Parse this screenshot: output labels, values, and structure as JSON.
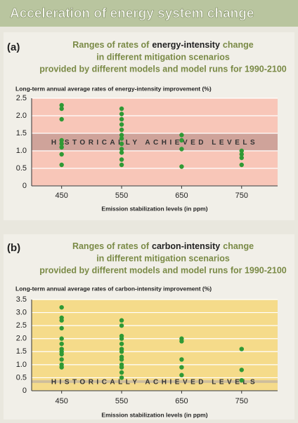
{
  "header": {
    "title": "Acceleration of energy system change"
  },
  "chart_data": [
    {
      "type": "scatter",
      "panel_label": "(a)",
      "title_parts": [
        "Ranges of rates of",
        "energy-intensity",
        "change"
      ],
      "title_lines": [
        "in different mitigation scenarios",
        "provided by different models and model runs for 1990-2100"
      ],
      "ylabel": "Long-term annual average rates of energy-intensity improvement (%)",
      "xlabel": "Emission stabilization levels (in ppm)",
      "xlim": [
        400,
        810
      ],
      "xticks": [
        450,
        550,
        650,
        750
      ],
      "ylim": [
        0,
        2.5
      ],
      "yticks": [
        0,
        0.5,
        {
          "value": 1,
          "label": "1.0"
        },
        1.5,
        {
          "value": 2,
          "label": "2.0"
        },
        2.5
      ],
      "grid": true,
      "plot_color": "#f8c6b8",
      "color": "#2f9a35",
      "band": {
        "range": [
          1,
          1.5
        ],
        "label": "HISTORICALLY ACHIEVED LEVELS",
        "color": "#cfa39a"
      },
      "x": [
        450,
        450,
        450,
        450,
        450,
        450,
        450,
        450,
        550,
        550,
        550,
        550,
        550,
        550,
        550,
        550,
        550,
        550,
        550,
        550,
        650,
        650,
        650,
        650,
        750,
        750,
        750,
        750
      ],
      "y": [
        2.3,
        2.2,
        1.9,
        1.3,
        1.2,
        1.1,
        0.9,
        0.6,
        2.2,
        2.05,
        1.9,
        1.75,
        1.6,
        1.45,
        1.35,
        1.2,
        1.05,
        0.95,
        0.75,
        0.6,
        1.45,
        1.3,
        1.05,
        0.55,
        1.0,
        0.9,
        0.8,
        0.6
      ]
    },
    {
      "type": "scatter",
      "panel_label": "(b)",
      "title_parts": [
        "Ranges of rates of",
        "carbon-intensity",
        "change"
      ],
      "title_lines": [
        "in different mitigation scenarios",
        "provided by different models and model runs for 1990-2100"
      ],
      "ylabel": "Long-term annual average rates of carbon-intensity improvement (%)",
      "xlabel": "Emission stabilization levels (in ppm)",
      "xlim": [
        400,
        810
      ],
      "xticks": [
        450,
        550,
        650,
        750
      ],
      "ylim": [
        0,
        3.5
      ],
      "yticks": [
        0,
        0.5,
        {
          "value": 1,
          "label": "1.0"
        },
        1.5,
        {
          "value": 2,
          "label": "2.0"
        },
        2.5,
        {
          "value": 3,
          "label": "3.0"
        },
        3.5
      ],
      "grid": true,
      "plot_color": "#f5db8a",
      "color": "#2f9a35",
      "band": {
        "range": [
          0.3,
          0.4
        ],
        "label": "HISTORICALLY ACHIEVED LEVELS",
        "color": "#cdbd9c"
      },
      "x": [
        450,
        450,
        450,
        450,
        450,
        450,
        450,
        450,
        450,
        450,
        450,
        450,
        550,
        550,
        550,
        550,
        550,
        550,
        550,
        550,
        550,
        550,
        550,
        550,
        550,
        650,
        650,
        650,
        650,
        650,
        750,
        750,
        750
      ],
      "y": [
        3.2,
        2.8,
        2.7,
        2.4,
        2.0,
        1.8,
        1.6,
        1.5,
        1.4,
        1.2,
        1.0,
        0.9,
        2.7,
        2.5,
        2.1,
        2.0,
        1.8,
        1.6,
        1.5,
        1.3,
        1.2,
        1.0,
        0.9,
        0.7,
        0.5,
        2.0,
        1.9,
        1.2,
        0.9,
        0.6,
        1.6,
        0.8,
        0.4
      ]
    }
  ]
}
